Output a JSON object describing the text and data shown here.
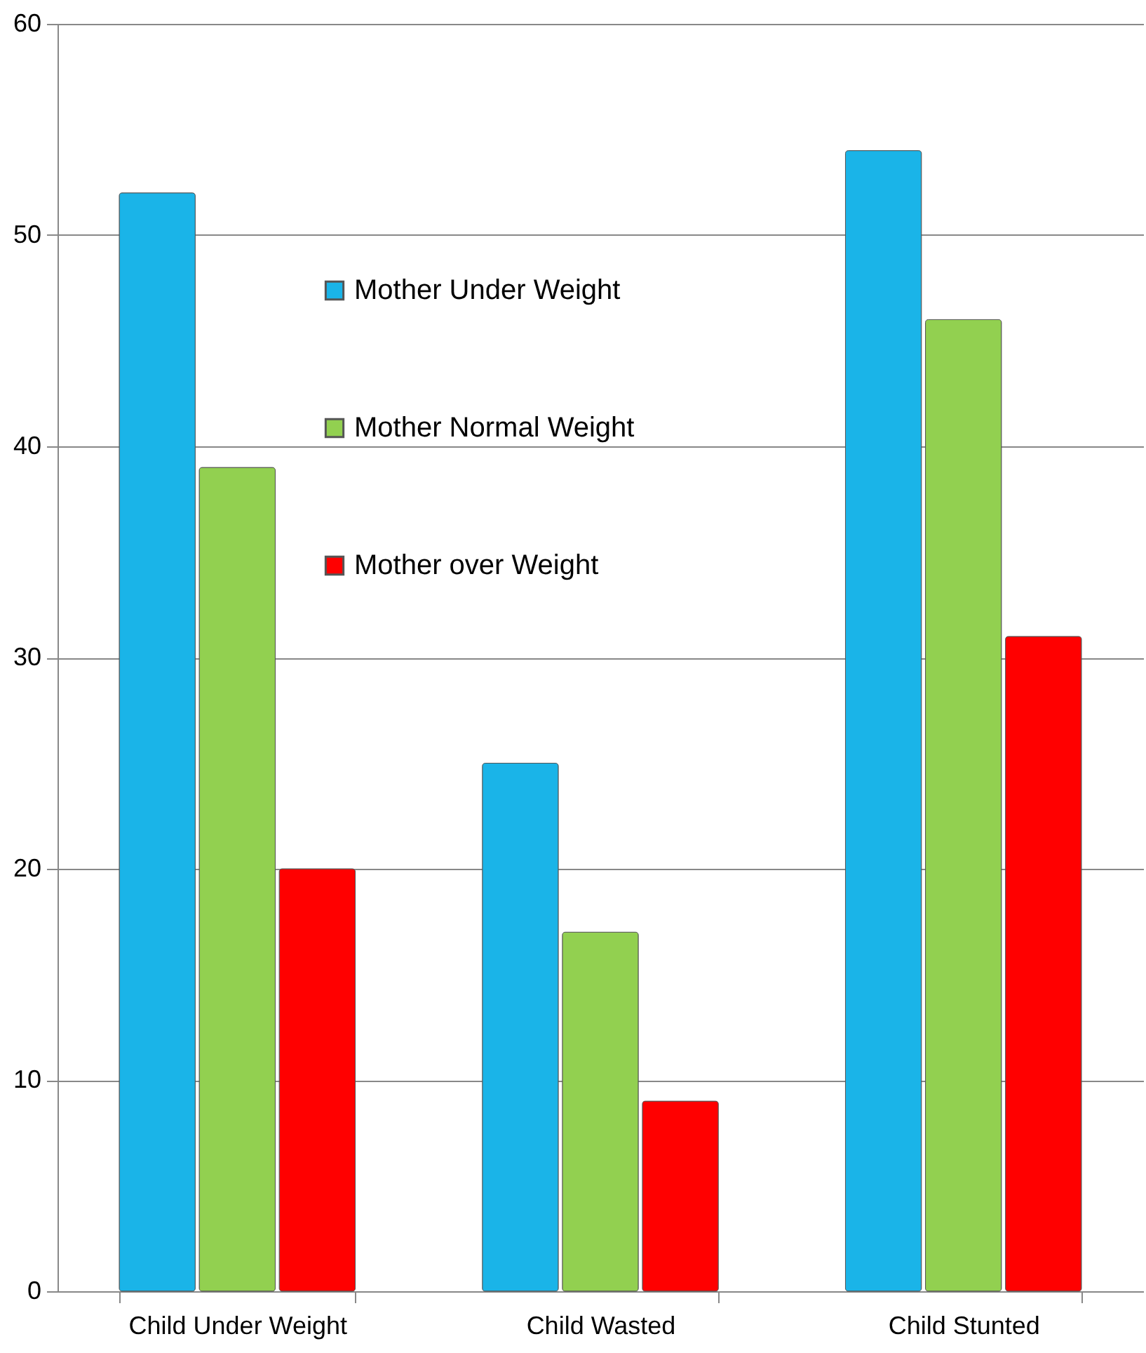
{
  "chart_data": {
    "type": "bar",
    "categories": [
      "Child Under Weight",
      "Child Wasted",
      "Child Stunted"
    ],
    "series": [
      {
        "name": "Mother Under Weight",
        "color": "#1ab4e8",
        "values": [
          52,
          25,
          54
        ]
      },
      {
        "name": "Mother Normal Weight",
        "color": "#92d050",
        "values": [
          39,
          17,
          46
        ]
      },
      {
        "name": "Mother over Weight",
        "color": "#ff0000",
        "values": [
          20,
          9,
          31
        ]
      }
    ],
    "ylim": [
      0,
      60
    ],
    "yticks": [
      0,
      10,
      20,
      30,
      40,
      50,
      60
    ],
    "grid": "y",
    "legend": "top"
  }
}
